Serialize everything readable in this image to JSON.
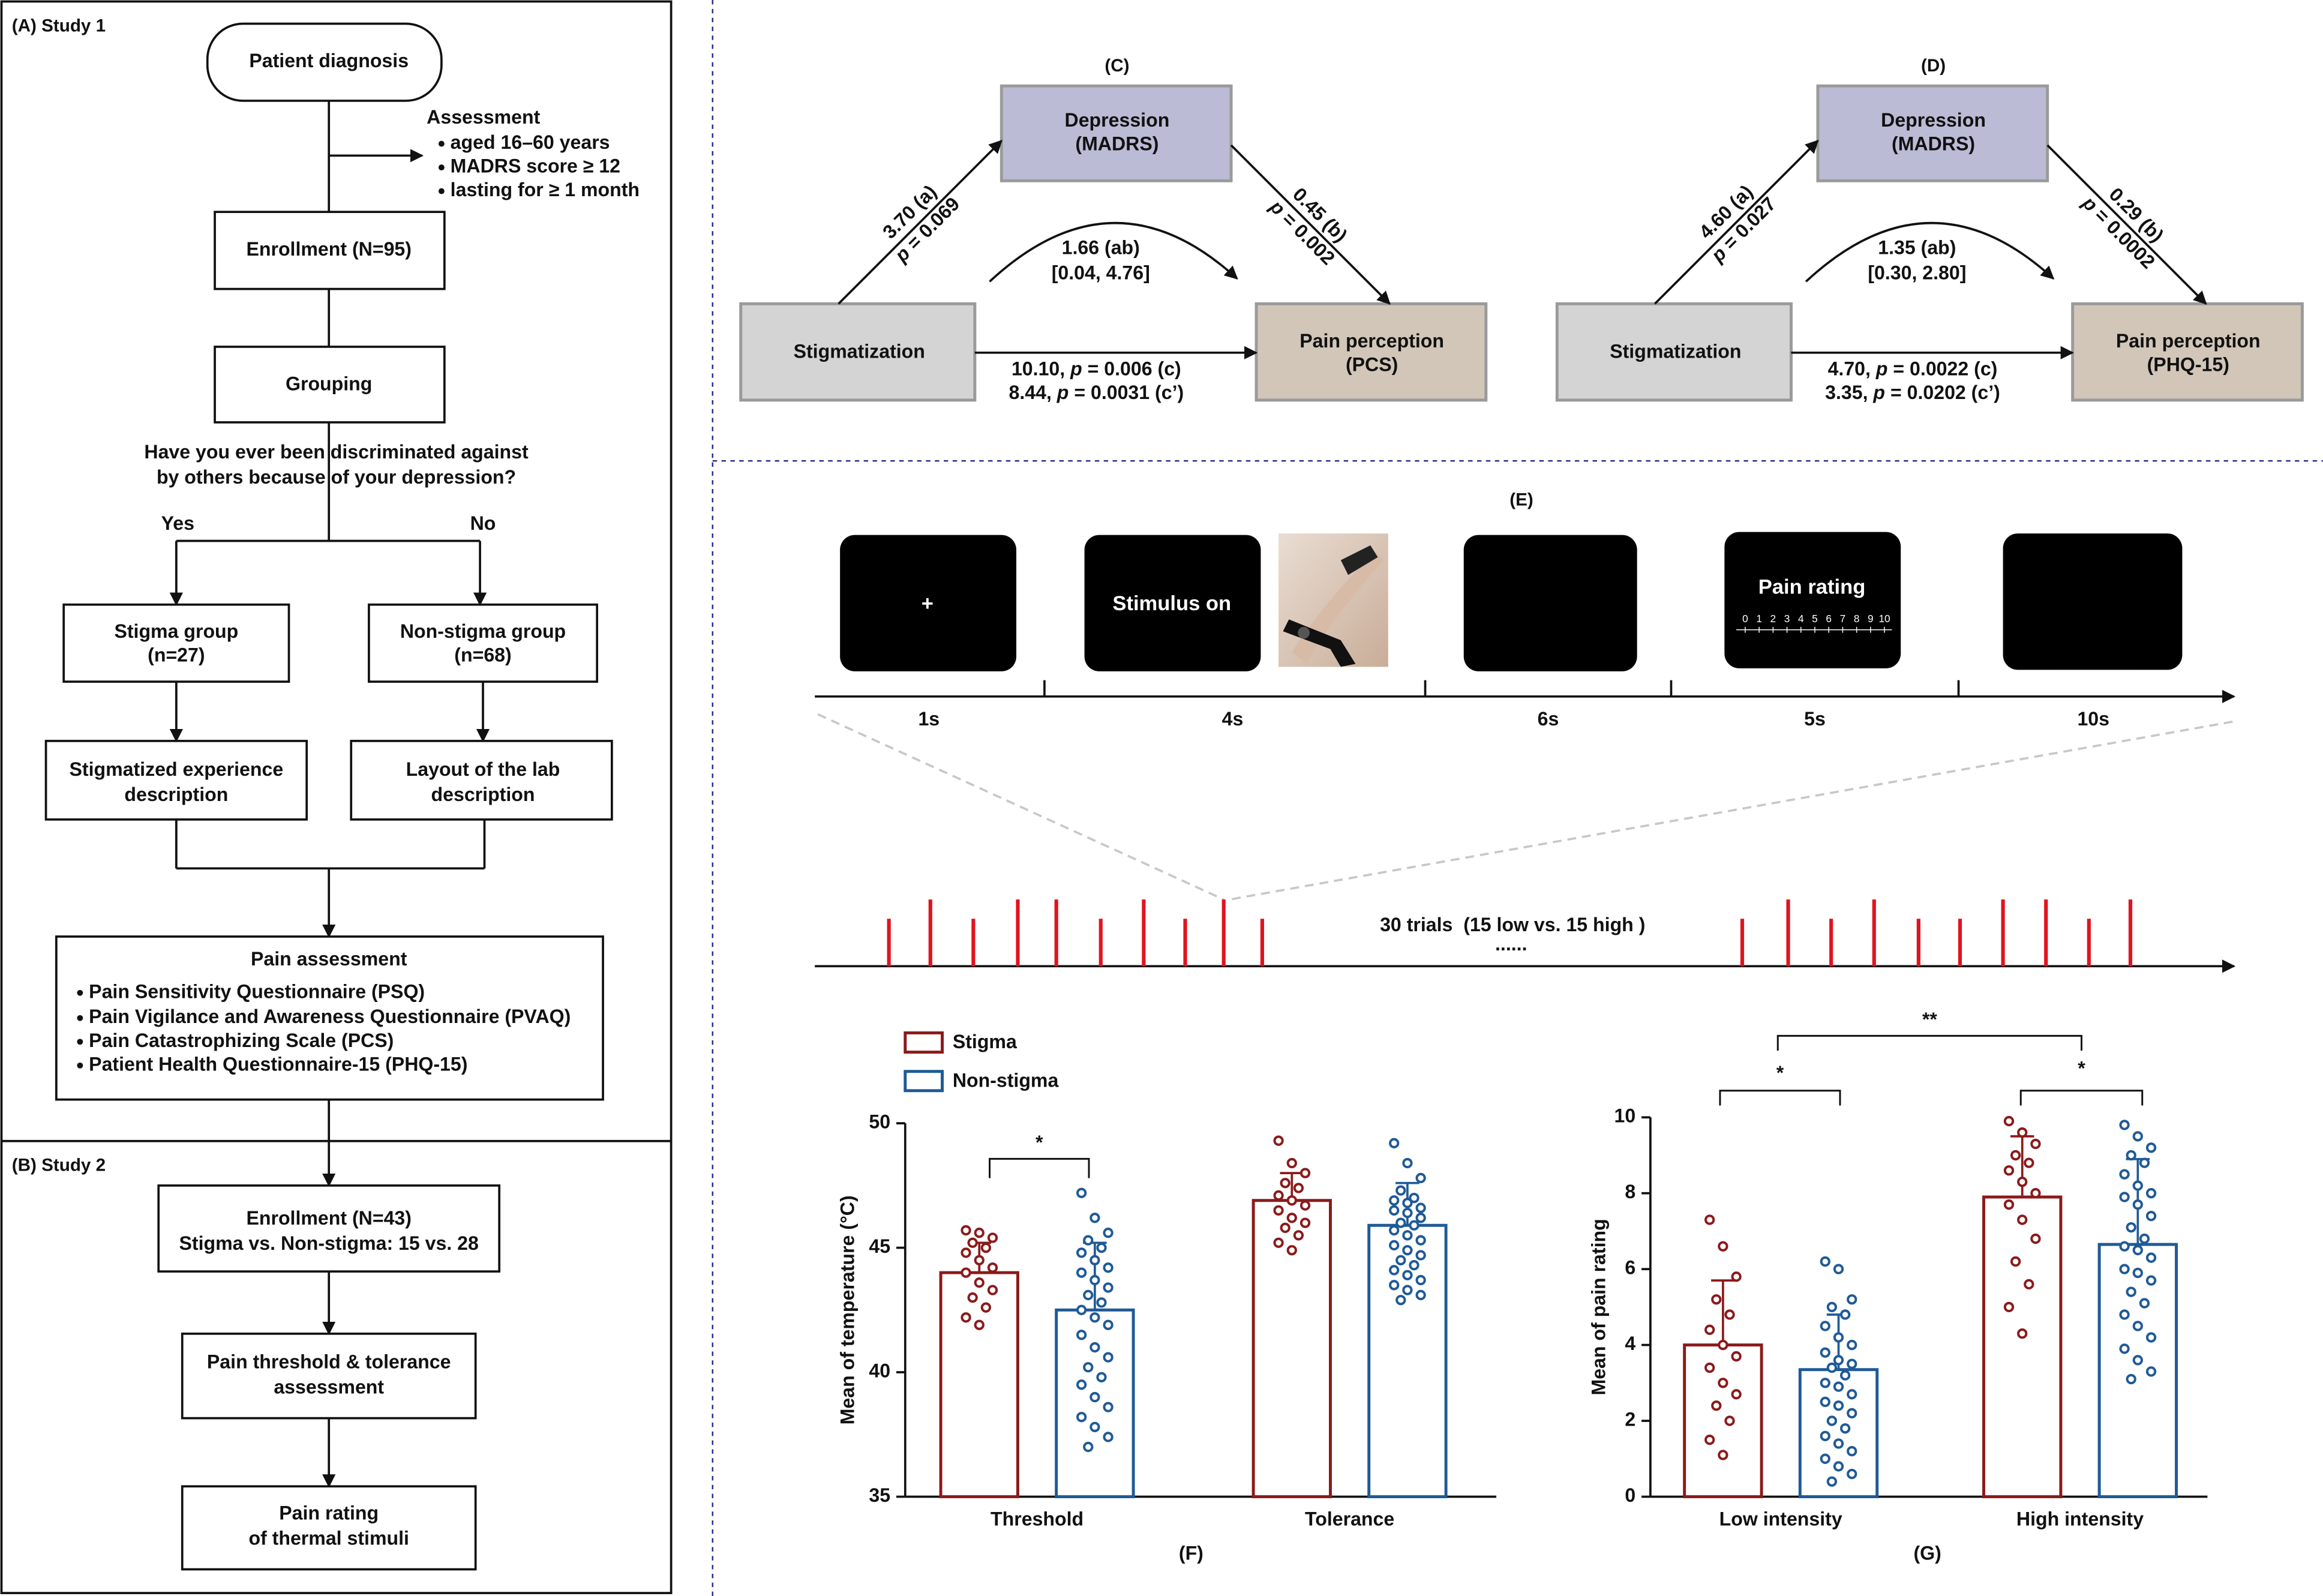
{
  "panel_a": {
    "label": "(A) Study 1",
    "diagnosis": "Patient diagnosis",
    "assessment": {
      "title": "Assessment",
      "items": [
        "aged 16–60 years",
        "MADRS score ≥ 12",
        "lasting for ≥ 1 month"
      ]
    },
    "enrollment": "Enrollment (N=95)",
    "grouping": "Grouping",
    "question": [
      "Have you ever been discriminated against",
      "by others because of your depression?"
    ],
    "yes": "Yes",
    "no": "No",
    "stigma_group": [
      "Stigma group",
      "(n=27)"
    ],
    "non_stigma_group": [
      "Non-stigma group",
      "(n=68)"
    ],
    "stigma_task": [
      "Stigmatized experience",
      "description"
    ],
    "non_stigma_task": [
      "Layout of the lab",
      "description"
    ],
    "pain_assessment": {
      "title": "Pain assessment",
      "items": [
        "Pain Sensitivity Questionnaire (PSQ)",
        "Pain Vigilance and Awareness Questionnaire (PVAQ)",
        "Pain Catastrophizing Scale (PCS)",
        "Patient Health Questionnaire-15 (PHQ-15)"
      ]
    }
  },
  "panel_b": {
    "label": "(B) Study 2",
    "enrollment": [
      "Enrollment (N=43)",
      "Stigma vs. Non-stigma: 15 vs. 28"
    ],
    "threshold": [
      "Pain threshold & tolerance",
      "assessment"
    ],
    "rating": [
      "Pain rating",
      "of thermal stimuli"
    ]
  },
  "mediation": [
    {
      "label": "(C)",
      "mediator": [
        "Depression",
        "(MADRS)"
      ],
      "predictor": "Stigmatization",
      "outcome": [
        "Pain perception",
        "(PCS)"
      ],
      "path_a": [
        "3.70 (a)",
        "p = 0.069"
      ],
      "path_b": [
        "0.45 (b)",
        "p = 0.002"
      ],
      "indirect": [
        "1.66 (ab)",
        "[0.04, 4.76]"
      ],
      "direct": [
        "10.10, p = 0.006 (c)",
        "8.44, p = 0.0031 (c’)"
      ]
    },
    {
      "label": "(D)",
      "mediator": [
        "Depression",
        "(MADRS)"
      ],
      "predictor": "Stigmatization",
      "outcome": [
        "Pain perception",
        "(PHQ-15)"
      ],
      "path_a": [
        "4.60 (a)",
        "p = 0.027"
      ],
      "path_b": [
        "0.29 (b)",
        "p = 0.0002"
      ],
      "indirect": [
        "1.35 (ab)",
        "[0.30, 2.80]"
      ],
      "direct": [
        "4.70, p = 0.0022 (c)",
        "3.35, p = 0.0202 (c’)"
      ]
    }
  ],
  "panel_e": {
    "label": "(E)",
    "screens": [
      "+",
      "Stimulus on",
      "Pain rating"
    ],
    "rating_scale": [
      0,
      1,
      2,
      3,
      4,
      5,
      6,
      7,
      8,
      9,
      10
    ],
    "durations": [
      "1s",
      "4s",
      "6s",
      "5s",
      "10s"
    ],
    "trials": "30 trials  (15 low vs. 15 high )",
    "continuation": "......"
  },
  "chart_data": [
    {
      "type": "bar",
      "panel_label": "(F)",
      "ylabel": "Mean of temperature (°C)",
      "categories": [
        "Threshold",
        "Tolerance"
      ],
      "ylim": [
        35,
        50
      ],
      "yticks": [
        35,
        40,
        45,
        50
      ],
      "annotations": [
        "*"
      ],
      "series": [
        {
          "name": "Stigma",
          "color": "#8b1a1a",
          "values": [
            44.0,
            46.9
          ],
          "errors": [
            1.2,
            1.1
          ],
          "points": [
            [
              45.7,
              45.6,
              45.4,
              45.2,
              45.0,
              44.8,
              44.5,
              44.2,
              44.0,
              43.6,
              43.3,
              43.0,
              42.6,
              42.2,
              41.9
            ],
            [
              49.3,
              48.4,
              48.0,
              47.6,
              47.4,
              47.1,
              46.9,
              46.7,
              46.5,
              46.2,
              46.0,
              45.8,
              45.5,
              45.2,
              44.9
            ]
          ]
        },
        {
          "name": "Non-stigma",
          "color": "#1f5a96",
          "values": [
            42.5,
            45.9
          ],
          "errors": [
            2.7,
            1.7
          ],
          "points": [
            [
              47.2,
              46.2,
              45.6,
              45.3,
              45.0,
              44.8,
              44.5,
              44.2,
              44.0,
              43.7,
              43.4,
              43.1,
              42.8,
              42.5,
              42.2,
              41.9,
              41.5,
              41.0,
              40.6,
              40.2,
              39.8,
              39.5,
              39.0,
              38.6,
              38.2,
              37.8,
              37.4,
              37.0
            ],
            [
              49.2,
              48.4,
              47.8,
              47.3,
              47.0,
              46.9,
              46.8,
              46.6,
              46.5,
              46.4,
              46.2,
              46.0,
              45.9,
              45.7,
              45.5,
              45.3,
              45.1,
              44.9,
              44.7,
              44.5,
              44.3,
              44.1,
              43.9,
              43.7,
              43.5,
              43.3,
              43.1,
              42.9
            ]
          ]
        }
      ]
    },
    {
      "type": "bar",
      "panel_label": "(G)",
      "ylabel": "Mean of pain rating",
      "categories": [
        "Low intensity",
        "High intensity"
      ],
      "ylim": [
        0,
        10
      ],
      "yticks": [
        0,
        2,
        4,
        6,
        8,
        10
      ],
      "annotations": [
        "*",
        "*",
        "**"
      ],
      "series": [
        {
          "name": "Stigma",
          "color": "#8b1a1a",
          "values": [
            4.0,
            7.9
          ],
          "errors": [
            1.7,
            1.6
          ],
          "points": [
            [
              7.3,
              6.6,
              5.8,
              5.2,
              4.8,
              4.4,
              4.0,
              3.7,
              3.4,
              3.0,
              2.7,
              2.4,
              2.0,
              1.5,
              1.1
            ],
            [
              9.9,
              9.6,
              9.3,
              9.0,
              8.8,
              8.6,
              8.3,
              8.0,
              7.7,
              7.3,
              6.8,
              6.2,
              5.6,
              5.0,
              4.3
            ]
          ]
        },
        {
          "name": "Non-stigma",
          "color": "#1f5a96",
          "values": [
            3.35,
            6.65
          ],
          "errors": [
            1.45,
            2.25
          ],
          "points": [
            [
              6.2,
              6.0,
              5.2,
              5.0,
              4.8,
              4.5,
              4.2,
              4.0,
              3.8,
              3.6,
              3.5,
              3.4,
              3.2,
              3.0,
              2.9,
              2.7,
              2.5,
              2.4,
              2.2,
              2.0,
              1.8,
              1.6,
              1.4,
              1.2,
              1.0,
              0.8,
              0.6,
              0.4
            ],
            [
              9.8,
              9.5,
              9.2,
              9.0,
              8.8,
              8.5,
              8.2,
              8.0,
              7.9,
              7.7,
              7.4,
              7.1,
              6.8,
              6.6,
              6.5,
              6.3,
              6.0,
              5.9,
              5.7,
              5.4,
              5.1,
              4.8,
              4.5,
              4.2,
              3.9,
              3.6,
              3.3,
              3.1
            ]
          ]
        }
      ]
    }
  ]
}
